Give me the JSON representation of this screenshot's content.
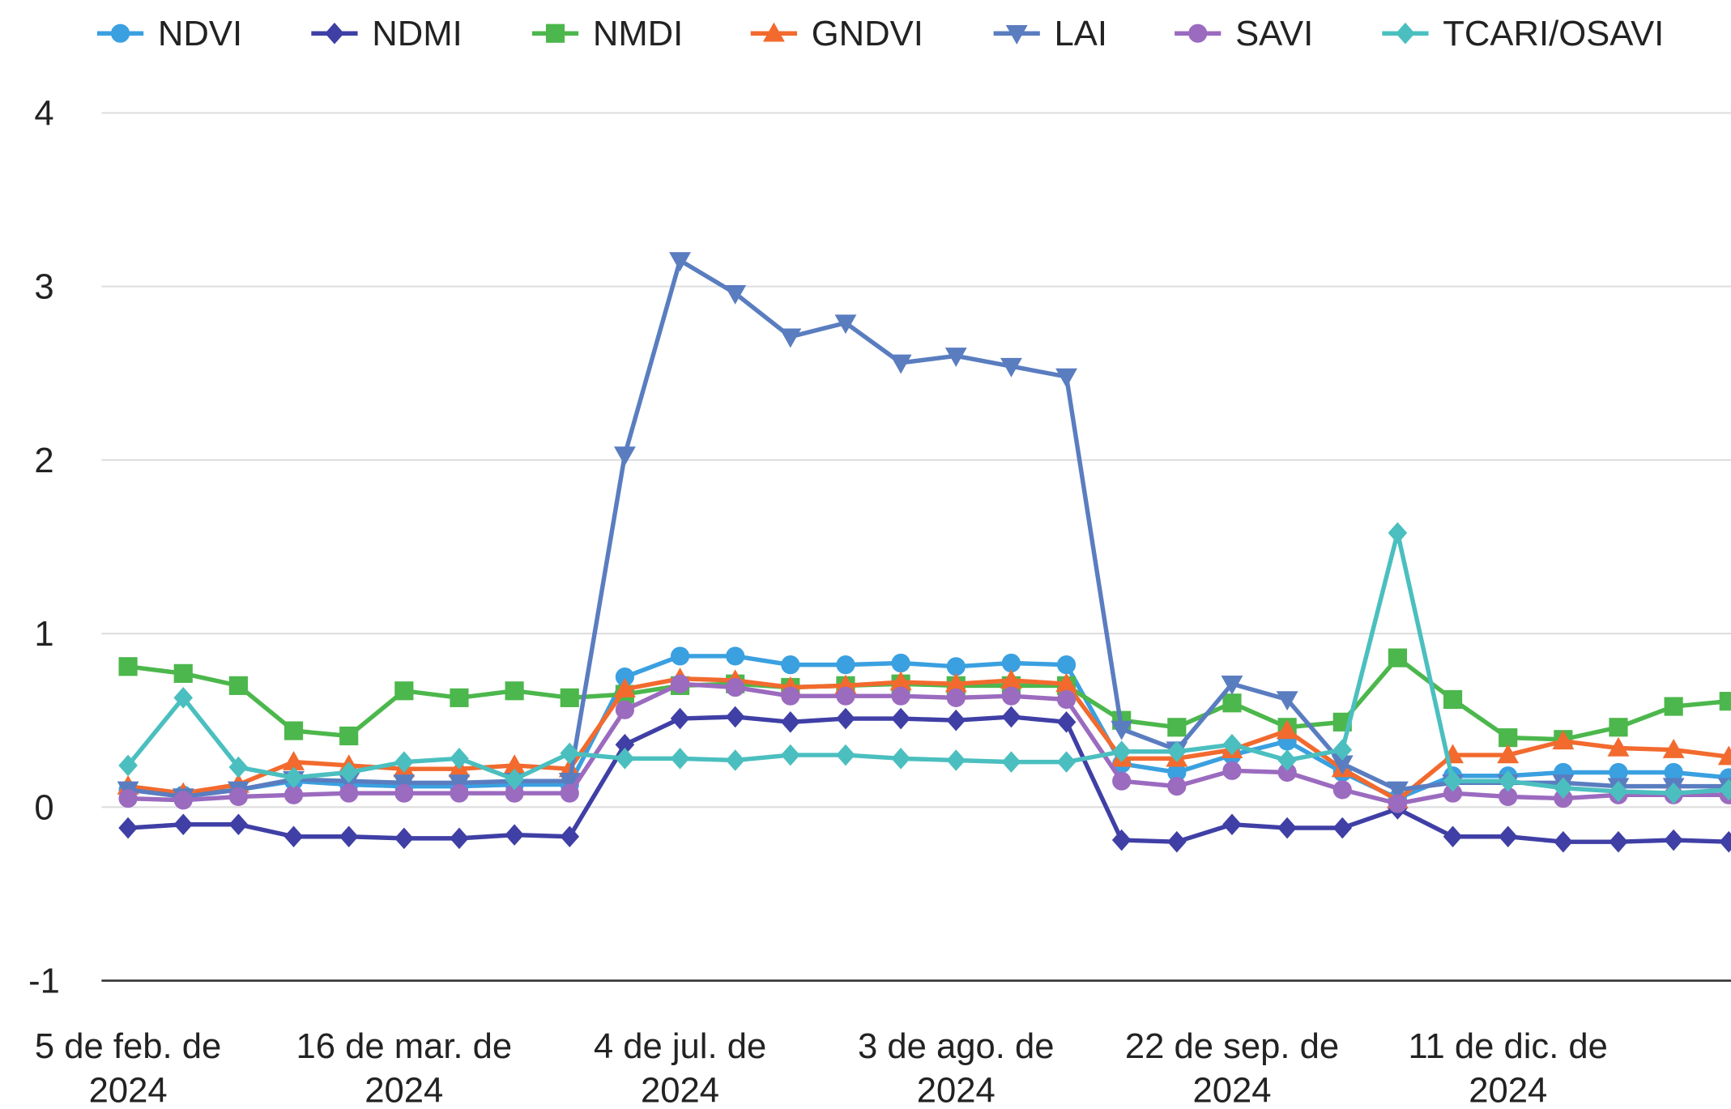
{
  "chart_data": {
    "type": "line",
    "categories": [
      "5 de feb. de 2024",
      null,
      null,
      null,
      null,
      "16 de mar. de 2024",
      null,
      null,
      null,
      null,
      "4 de jul. de 2024",
      null,
      null,
      null,
      null,
      "3 de ago. de 2024",
      null,
      null,
      null,
      null,
      "22 de sep. de 2024",
      null,
      null,
      null,
      null,
      "11 de dic. de 2024",
      null,
      null,
      null,
      null
    ],
    "series": [
      {
        "name": "NDVI",
        "color": "#3aa0e0",
        "marker": "circle",
        "values": [
          0.1,
          0.07,
          0.1,
          0.15,
          0.13,
          0.12,
          0.12,
          0.13,
          0.13,
          0.75,
          0.87,
          0.87,
          0.82,
          0.82,
          0.83,
          0.81,
          0.83,
          0.82,
          0.25,
          0.2,
          0.3,
          0.38,
          0.2,
          0.05,
          0.18,
          0.18,
          0.2,
          0.2,
          0.2,
          0.17
        ]
      },
      {
        "name": "NDMI",
        "color": "#3f3fa6",
        "marker": "diamond",
        "values": [
          -0.12,
          -0.1,
          -0.1,
          -0.17,
          -0.17,
          -0.18,
          -0.18,
          -0.16,
          -0.17,
          0.36,
          0.51,
          0.52,
          0.49,
          0.51,
          0.51,
          0.5,
          0.52,
          0.49,
          -0.19,
          -0.2,
          -0.1,
          -0.12,
          -0.12,
          -0.01,
          -0.17,
          -0.17,
          -0.2,
          -0.2,
          -0.19,
          -0.2
        ]
      },
      {
        "name": "NMDI",
        "color": "#4cb74c",
        "marker": "square",
        "values": [
          0.81,
          0.77,
          0.7,
          0.44,
          0.41,
          0.67,
          0.63,
          0.67,
          0.63,
          0.65,
          0.7,
          0.71,
          0.69,
          0.7,
          0.71,
          0.7,
          0.7,
          0.7,
          0.5,
          0.46,
          0.6,
          0.46,
          0.49,
          0.86,
          0.62,
          0.4,
          0.39,
          0.46,
          0.58,
          0.61
        ]
      },
      {
        "name": "GNDVI",
        "color": "#f26a2e",
        "marker": "triangle-up",
        "values": [
          0.12,
          0.08,
          0.13,
          0.26,
          0.24,
          0.22,
          0.22,
          0.24,
          0.22,
          0.68,
          0.74,
          0.73,
          0.69,
          0.7,
          0.72,
          0.71,
          0.73,
          0.71,
          0.28,
          0.28,
          0.33,
          0.44,
          0.22,
          0.04,
          0.3,
          0.3,
          0.38,
          0.34,
          0.33,
          0.29
        ]
      },
      {
        "name": "LAI",
        "color": "#5a7dc0",
        "marker": "triangle-down",
        "values": [
          0.1,
          0.06,
          0.1,
          0.16,
          0.15,
          0.14,
          0.14,
          0.15,
          0.15,
          2.03,
          3.15,
          2.96,
          2.71,
          2.79,
          2.56,
          2.6,
          2.54,
          2.48,
          0.45,
          0.33,
          0.71,
          0.62,
          0.25,
          0.1,
          0.14,
          0.14,
          0.14,
          0.12,
          0.12,
          0.12
        ]
      },
      {
        "name": "SAVI",
        "color": "#9b6bbf",
        "marker": "circle",
        "values": [
          0.05,
          0.04,
          0.06,
          0.07,
          0.08,
          0.08,
          0.08,
          0.08,
          0.08,
          0.56,
          0.71,
          0.69,
          0.64,
          0.64,
          0.64,
          0.63,
          0.64,
          0.62,
          0.15,
          0.12,
          0.21,
          0.2,
          0.1,
          0.02,
          0.08,
          0.06,
          0.05,
          0.07,
          0.07,
          0.07
        ]
      },
      {
        "name": "TCARI/OSAVI",
        "color": "#4bbfbf",
        "marker": "diamond",
        "values": [
          0.24,
          0.63,
          0.23,
          0.17,
          0.2,
          0.26,
          0.28,
          0.16,
          0.31,
          0.28,
          0.28,
          0.27,
          0.3,
          0.3,
          0.28,
          0.27,
          0.26,
          0.26,
          0.32,
          0.32,
          0.36,
          0.27,
          0.33,
          1.58,
          0.15,
          0.15,
          0.11,
          0.09,
          0.08,
          0.1
        ]
      }
    ],
    "ylim": [
      -1,
      4
    ],
    "yticks": [
      -1,
      0,
      1,
      2,
      3,
      4
    ],
    "grid": true,
    "legend": "top"
  }
}
